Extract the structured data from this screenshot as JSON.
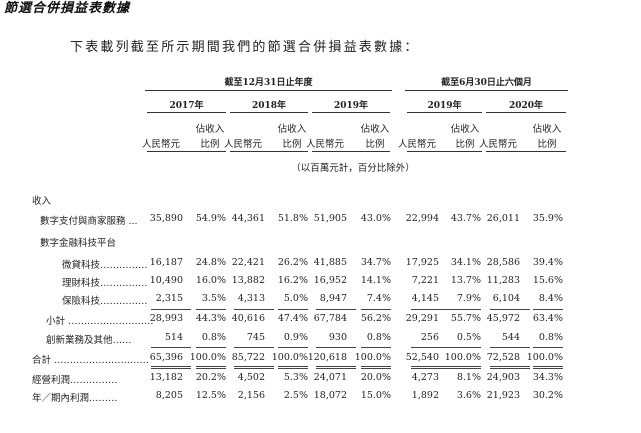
{
  "section_title": "節選合併損益表數據",
  "intro": "下表載列截至所示期間我們的節選合併損益表數據：",
  "period_headers": {
    "annual": "截至12月31日止年度",
    "interim": "截至6月30日止六個月"
  },
  "years": [
    "2017年",
    "2018年",
    "2019年",
    "2019年",
    "2020年"
  ],
  "col_labels": {
    "rmb": "人民幣元",
    "pct_top": "佔收入",
    "pct_bottom": "比例"
  },
  "unit_note": "（以百萬元計，百分比除外）",
  "rows": [
    {
      "label": "收入",
      "indent": 0,
      "values": []
    },
    {
      "label": "數字支付與商家服務 ...",
      "indent": 1,
      "values": [
        "35,890",
        "54.9%",
        "44,361",
        "51.8%",
        "51,905",
        "43.0%",
        "22,994",
        "43.7%",
        "26,011",
        "35.9%"
      ]
    },
    {
      "label": "數字金融科技平台",
      "indent": 1,
      "values": []
    },
    {
      "label": "微貸科技……………",
      "indent": 2,
      "values": [
        "16,187",
        "24.8%",
        "22,421",
        "26.2%",
        "41,885",
        "34.7%",
        "17,925",
        "34.1%",
        "28,586",
        "39.4%"
      ]
    },
    {
      "label": "理財科技……………",
      "indent": 2,
      "values": [
        "10,490",
        "16.0%",
        "13,882",
        "16.2%",
        "16,952",
        "14.1%",
        "7,221",
        "13.7%",
        "11,283",
        "15.6%"
      ]
    },
    {
      "label": "保險科技……………",
      "indent": 2,
      "values": [
        "2,315",
        "3.5%",
        "4,313",
        "5.0%",
        "8,947",
        "7.4%",
        "4,145",
        "7.9%",
        "6,104",
        "8.4%"
      ]
    },
    {
      "label": "小計 ………………………",
      "indent": 1,
      "values": [
        "28,993",
        "44.3%",
        "40,616",
        "47.4%",
        "67,784",
        "56.2%",
        "29,291",
        "55.7%",
        "45,972",
        "63.4%"
      ]
    },
    {
      "label": "創新業務及其他……",
      "indent": 1,
      "values": [
        "514",
        "0.8%",
        "745",
        "0.9%",
        "930",
        "0.8%",
        "256",
        "0.5%",
        "544",
        "0.8%"
      ]
    },
    {
      "label": "合計 …………………………",
      "indent": 0,
      "values": [
        "65,396",
        "100.0%",
        "85,722",
        "100.0%",
        "120,618",
        "100.0%",
        "52,540",
        "100.0%",
        "72,528",
        "100.0%"
      ]
    },
    {
      "label": "經營利潤……………",
      "indent": 0,
      "values": [
        "13,182",
        "20.2%",
        "4,502",
        "5.3%",
        "24,071",
        "20.0%",
        "4,273",
        "8.1%",
        "24,903",
        "34.3%"
      ]
    },
    {
      "label": "年／期內利潤………",
      "indent": 0,
      "values": [
        "8,205",
        "12.5%",
        "2,156",
        "2.5%",
        "18,072",
        "15.0%",
        "1,892",
        "3.6%",
        "21,923",
        "30.2%"
      ]
    }
  ]
}
